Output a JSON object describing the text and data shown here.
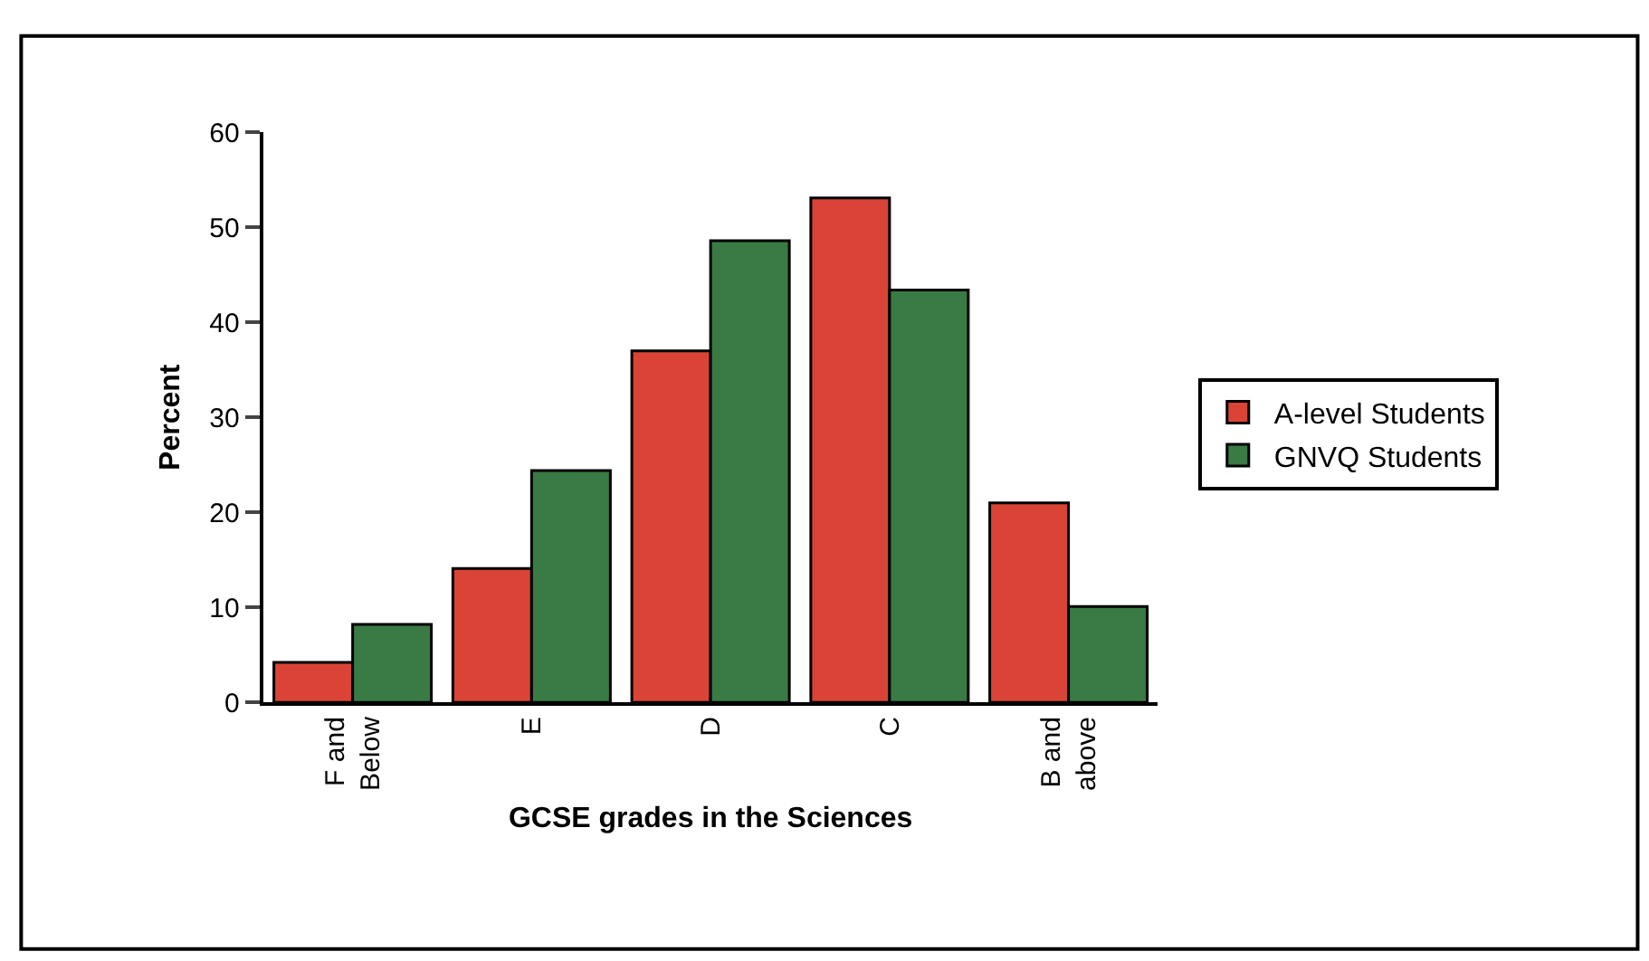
{
  "chart_data": {
    "type": "bar",
    "xlabel": "GCSE grades in the Sciences",
    "ylabel": "Percent",
    "categories": [
      "F and\nBelow",
      "E",
      "D",
      "C",
      "B and\nabove"
    ],
    "series": [
      {
        "name": "A-level Students",
        "color": "#d94436",
        "values": [
          4.2,
          14.1,
          37,
          53.1,
          21
        ]
      },
      {
        "name": "GNVQ Students",
        "color": "#3a7a45",
        "values": [
          8.2,
          24.4,
          48.6,
          43.4,
          10.1
        ]
      }
    ],
    "ylim": [
      0,
      60
    ],
    "yticks": [
      0,
      10,
      20,
      30,
      40,
      50,
      60
    ],
    "legend": "right"
  }
}
